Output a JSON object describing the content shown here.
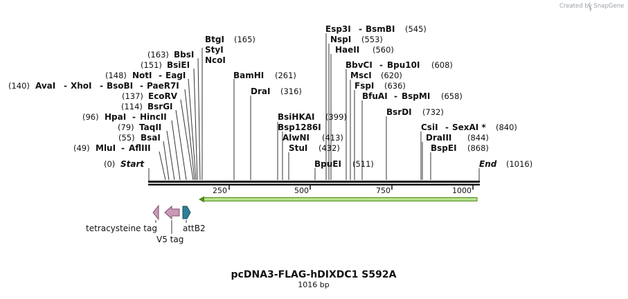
{
  "credit": "Created by SnapGene",
  "map": {
    "title": "pcDNA3-FLAG-hDIXDC1 S592A",
    "length_label": "1016 bp",
    "length": 1016,
    "start_label": "Start",
    "start_pos": "(0)",
    "end_label": "End",
    "end_pos": "(1016)",
    "ticks": [
      "250",
      "500",
      "750",
      "1000"
    ]
  },
  "sites": [
    {
      "name": "BtgI",
      "pos": "(165)"
    },
    {
      "name": "StyI"
    },
    {
      "name": "NcoI"
    },
    {
      "name": "BbsI",
      "pos": "(163)"
    },
    {
      "name": "BsiEI",
      "pos": "(151)"
    },
    {
      "name": "NotI",
      "pos": "(148)",
      "alt": "EagI"
    },
    {
      "name": "AvaI",
      "pos": "(140)",
      "alt": "XhoI",
      "alt2": "BsoBI",
      "alt3": "PaeR7I"
    },
    {
      "name": "EcoRV",
      "pos": "(137)"
    },
    {
      "name": "BsrGI",
      "pos": "(114)"
    },
    {
      "name": "HpaI",
      "pos": "(96)",
      "alt": "HincII"
    },
    {
      "name": "TaqII",
      "pos": "(79)"
    },
    {
      "name": "BsaI",
      "pos": "(55)"
    },
    {
      "name": "MluI",
      "pos": "(49)",
      "alt": "AflIII"
    },
    {
      "name": "BamHI",
      "pos": "(261)"
    },
    {
      "name": "DraI",
      "pos": "(316)"
    },
    {
      "name": "BsiHKAI",
      "pos": "(399)"
    },
    {
      "name": "Bsp1286I"
    },
    {
      "name": "AlwNI",
      "pos": "(413)"
    },
    {
      "name": "StuI",
      "pos": "(432)"
    },
    {
      "name": "Esp3I",
      "pos": "(545)",
      "alt": "BsmBI"
    },
    {
      "name": "NspI",
      "pos": "(553)"
    },
    {
      "name": "HaeII",
      "pos": "(560)"
    },
    {
      "name": "BbvCI",
      "pos": "(608)",
      "alt": "Bpu10I"
    },
    {
      "name": "MscI",
      "pos": "(620)"
    },
    {
      "name": "FspI",
      "pos": "(636)"
    },
    {
      "name": "BfuAI",
      "pos": "(658)",
      "alt": "BspMI"
    },
    {
      "name": "BpuEI",
      "pos": "(511)"
    },
    {
      "name": "BsrDI",
      "pos": "(732)"
    },
    {
      "name": "CsiI",
      "pos": "(840)",
      "alt": "SexAI *"
    },
    {
      "name": "DraIII",
      "pos": "(844)"
    },
    {
      "name": "BspEI",
      "pos": "(868)"
    }
  ],
  "features": [
    {
      "name": "tetracysteine tag",
      "color": "#c99ab8"
    },
    {
      "name": "V5 tag",
      "color": "#c99ab8"
    },
    {
      "name": "attB2",
      "color": "#2e7f96"
    }
  ],
  "orf": {
    "color": "#b8e08a",
    "outline": "#4c8a1e"
  }
}
